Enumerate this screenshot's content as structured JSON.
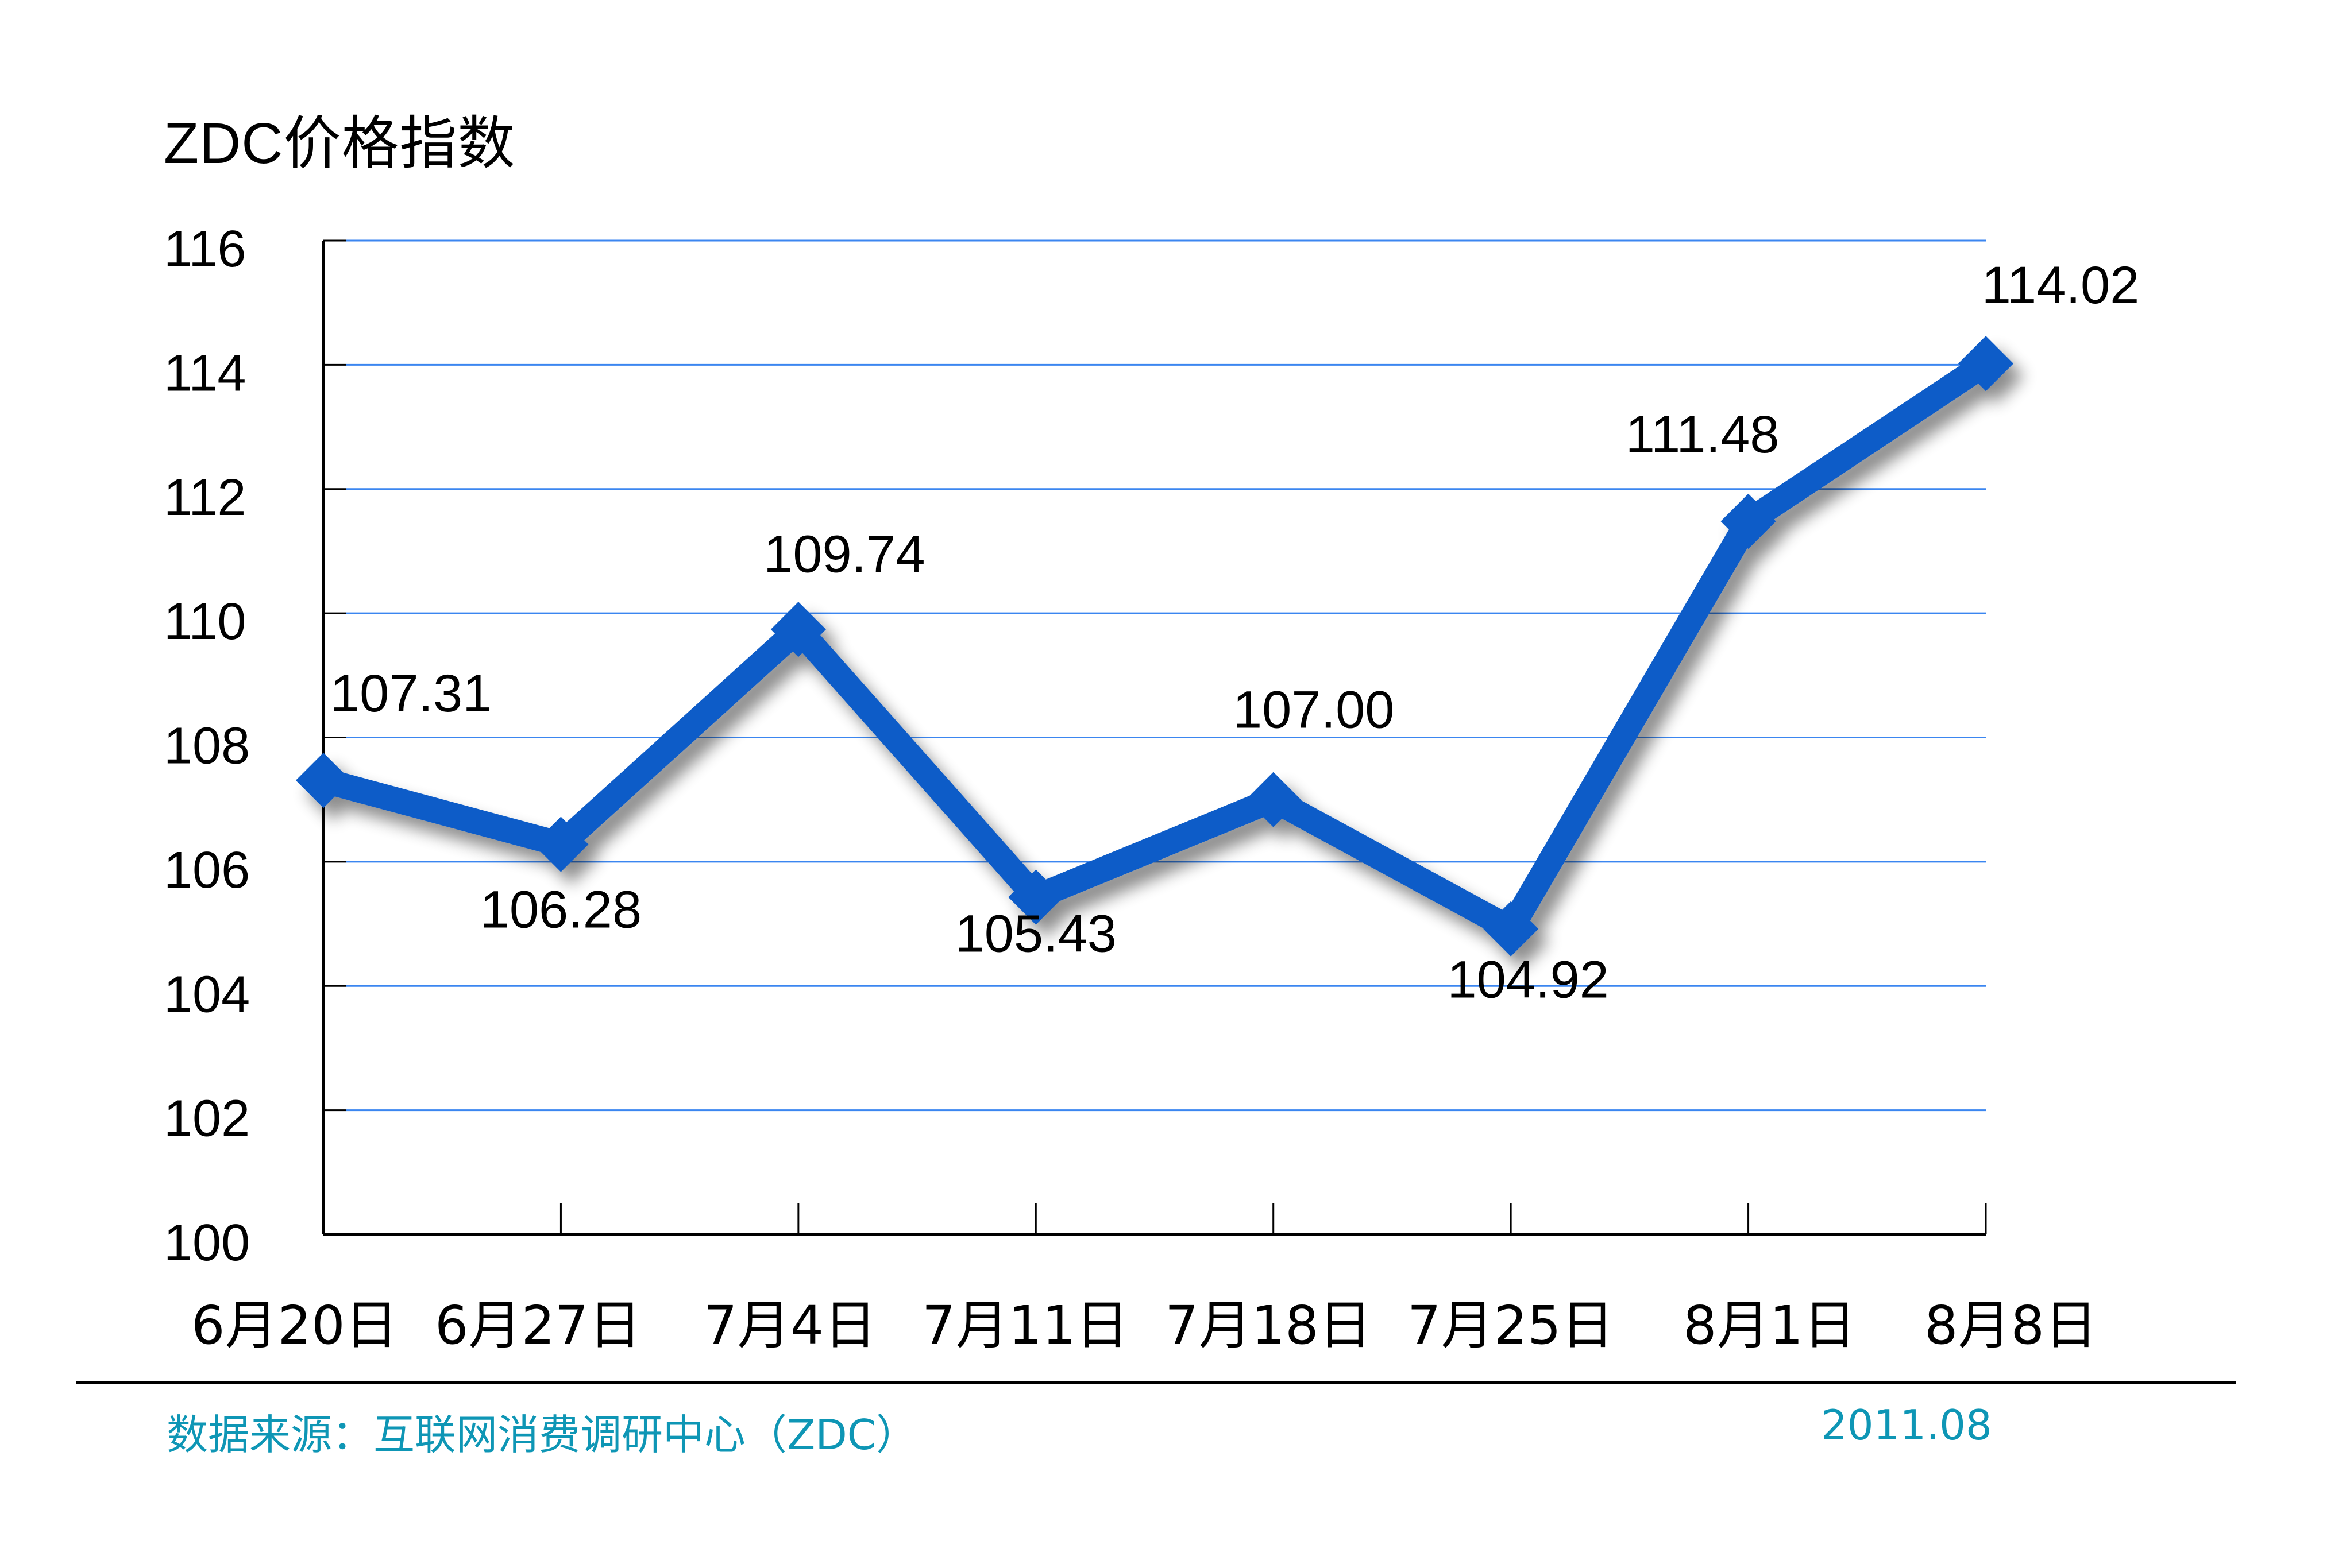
{
  "title": "ZDC价格指数",
  "footer": {
    "source": "数据来源：互联网消费调研中心（ZDC）",
    "date": "2011.08"
  },
  "colors": {
    "line": "#0A5CC8",
    "gridline": "#3B86F0",
    "axis": "#000000",
    "footer_text": "#0E96B5"
  },
  "chart_data": {
    "type": "line",
    "title": "ZDC价格指数",
    "xlabel": "",
    "ylabel": "",
    "categories": [
      "6月20日",
      "6月27日",
      "7月4日",
      "7月11日",
      "7月18日",
      "7月25日",
      "8月1日",
      "8月8日"
    ],
    "series": [
      {
        "name": "ZDC价格指数",
        "values": [
          107.31,
          106.28,
          109.74,
          105.43,
          107.0,
          104.92,
          111.48,
          114.02
        ],
        "labels": [
          "107.31",
          "106.28",
          "109.74",
          "105.43",
          "107.00",
          "104.92",
          "111.48",
          "114.02"
        ]
      }
    ],
    "ylim": [
      100,
      116
    ],
    "yticks": [
      "100",
      "102",
      "104",
      "106",
      "108",
      "110",
      "112",
      "114",
      "116"
    ],
    "grid": true,
    "legend": "none"
  }
}
